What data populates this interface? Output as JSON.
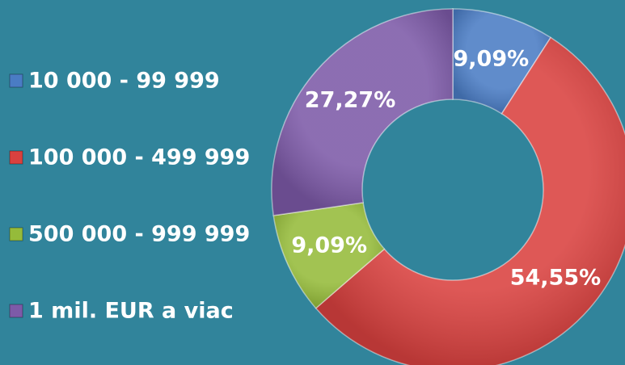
{
  "chart_data": {
    "type": "pie",
    "donut": true,
    "categories": [
      "10 000 - 99 999",
      "100 000 - 499 999",
      "500 000 - 999 999",
      "1 mil. EUR a viac"
    ],
    "values": [
      9.09,
      54.55,
      9.09,
      27.27
    ],
    "value_labels": [
      "9,09%",
      "54,55%",
      "9,09%",
      "27,27%"
    ],
    "colors": [
      "#4a7cc4",
      "#d9413f",
      "#95bb3a",
      "#7d5aa8"
    ],
    "legend": "left"
  }
}
